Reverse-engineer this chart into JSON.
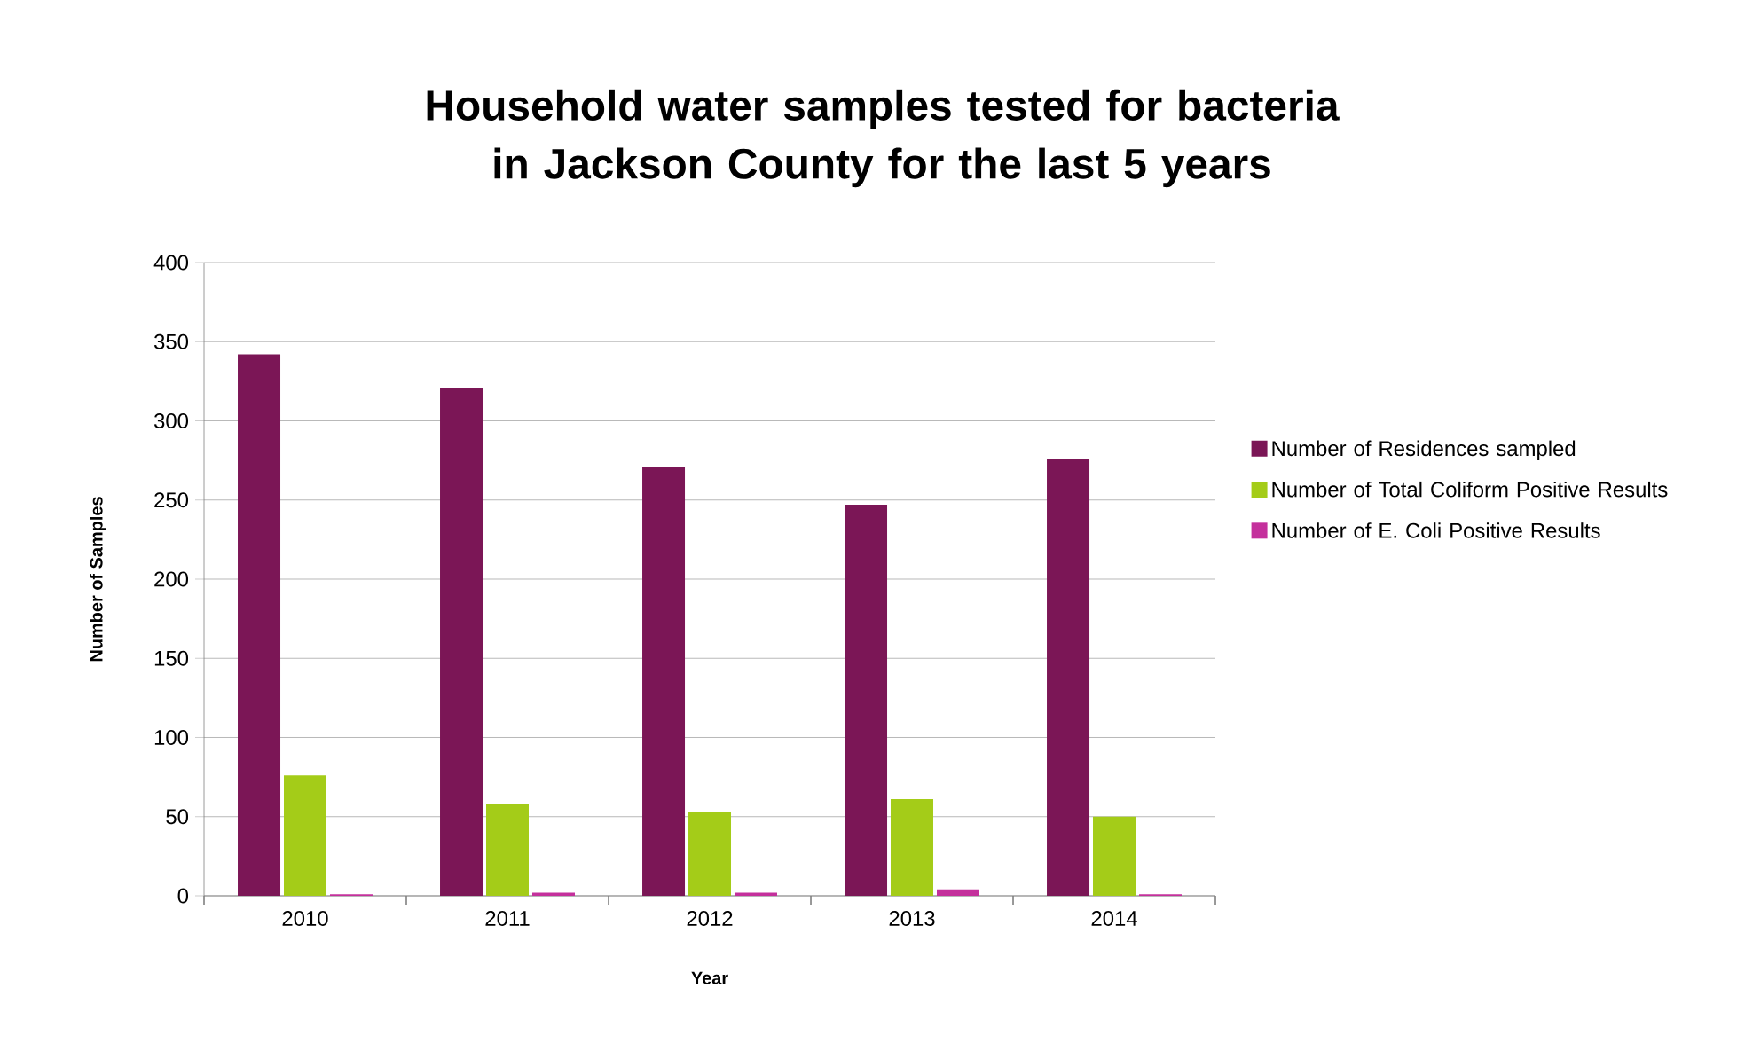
{
  "chart_data": {
    "type": "bar",
    "title": "Household water samples tested for bacteria in Jackson County for the last 5 years",
    "xlabel": "Year",
    "ylabel": "Number of Samples",
    "categories": [
      "2010",
      "2011",
      "2012",
      "2013",
      "2014"
    ],
    "series": [
      {
        "name": "Number of Residences sampled",
        "color": "#7b1656",
        "values": [
          342,
          321,
          271,
          247,
          276
        ]
      },
      {
        "name": "Number of Total Coliform Positive Results",
        "color": "#a4cc18",
        "values": [
          76,
          58,
          53,
          61,
          50
        ]
      },
      {
        "name": "Number of E. Coli Positive Results",
        "color": "#c4309c",
        "values": [
          1,
          2,
          2,
          4,
          1
        ]
      }
    ],
    "ylim": [
      0,
      400
    ],
    "yticks": [
      0,
      50,
      100,
      150,
      200,
      250,
      300,
      350,
      400
    ],
    "grid": "y",
    "legend": "right"
  }
}
